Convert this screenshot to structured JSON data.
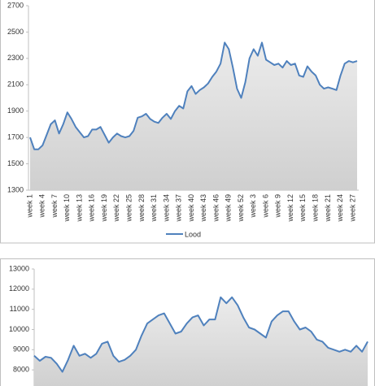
{
  "chart_data": [
    {
      "type": "area",
      "categories": [
        "week 1",
        null,
        null,
        "week 4",
        null,
        null,
        "week 7",
        null,
        null,
        "week 10",
        null,
        null,
        "week 13",
        null,
        null,
        "week 16",
        null,
        null,
        "week 19",
        null,
        null,
        "week 22",
        null,
        null,
        "week 25",
        null,
        null,
        "week 28",
        null,
        null,
        "week 31",
        null,
        null,
        "week 34",
        null,
        null,
        "week 37",
        null,
        null,
        "week 40",
        null,
        null,
        "week 43",
        null,
        null,
        "week 46",
        null,
        null,
        "week 49",
        null,
        null,
        "week 52",
        null,
        null,
        "week 3",
        null,
        null,
        "week 6",
        null,
        null,
        "week 9",
        null,
        null,
        "week 12",
        null,
        null,
        "week 15",
        null,
        null,
        "week 18",
        null,
        null,
        "week 21",
        null,
        null,
        "week 24",
        null,
        null,
        "week 27",
        null
      ],
      "series": [
        {
          "name": "Lood",
          "color": "#4f81bd",
          "values": [
            1700,
            1610,
            1610,
            1640,
            1720,
            1800,
            1830,
            1730,
            1800,
            1890,
            1840,
            1780,
            1740,
            1700,
            1710,
            1760,
            1760,
            1780,
            1720,
            1660,
            1700,
            1730,
            1710,
            1700,
            1710,
            1750,
            1850,
            1860,
            1880,
            1840,
            1820,
            1810,
            1850,
            1880,
            1840,
            1900,
            1940,
            1920,
            2050,
            2090,
            2030,
            2060,
            2080,
            2110,
            2160,
            2200,
            2260,
            2420,
            2370,
            2230,
            2070,
            2000,
            2120,
            2300,
            2370,
            2320,
            2420,
            2290,
            2270,
            2250,
            2260,
            2230,
            2280,
            2250,
            2260,
            2170,
            2160,
            2240,
            2200,
            2170,
            2100,
            2070,
            2080,
            2070,
            2060,
            2170,
            2260,
            2280,
            2270,
            2280
          ]
        }
      ],
      "ylim": [
        1300,
        2700
      ],
      "yticks": [
        1300,
        1500,
        1700,
        1900,
        2100,
        2300,
        2500,
        2700
      ],
      "grid": false,
      "legend": "bottom"
    },
    {
      "type": "area",
      "series": [
        {
          "color": "#4f81bd",
          "values": [
            8700,
            8450,
            8650,
            8600,
            8300,
            7900,
            8500,
            9200,
            8700,
            8800,
            8600,
            8800,
            9300,
            9400,
            8700,
            8400,
            8500,
            8700,
            9000,
            9700,
            10300,
            10500,
            10700,
            10800,
            10300,
            9800,
            9900,
            10300,
            10600,
            10700,
            10200,
            10500,
            10500,
            11600,
            11300,
            11600,
            11200,
            10600,
            10100,
            10000,
            9800,
            9600,
            10400,
            10700,
            10900,
            10900,
            10400,
            10000,
            10100,
            9900,
            9500,
            9400,
            9100,
            9000,
            8900,
            9000,
            8900,
            9200,
            8900,
            9400
          ]
        }
      ],
      "ylim": [
        7000,
        13000
      ],
      "yticks": [
        8000,
        9000,
        10000,
        11000,
        12000,
        13000
      ],
      "grid": false
    }
  ]
}
